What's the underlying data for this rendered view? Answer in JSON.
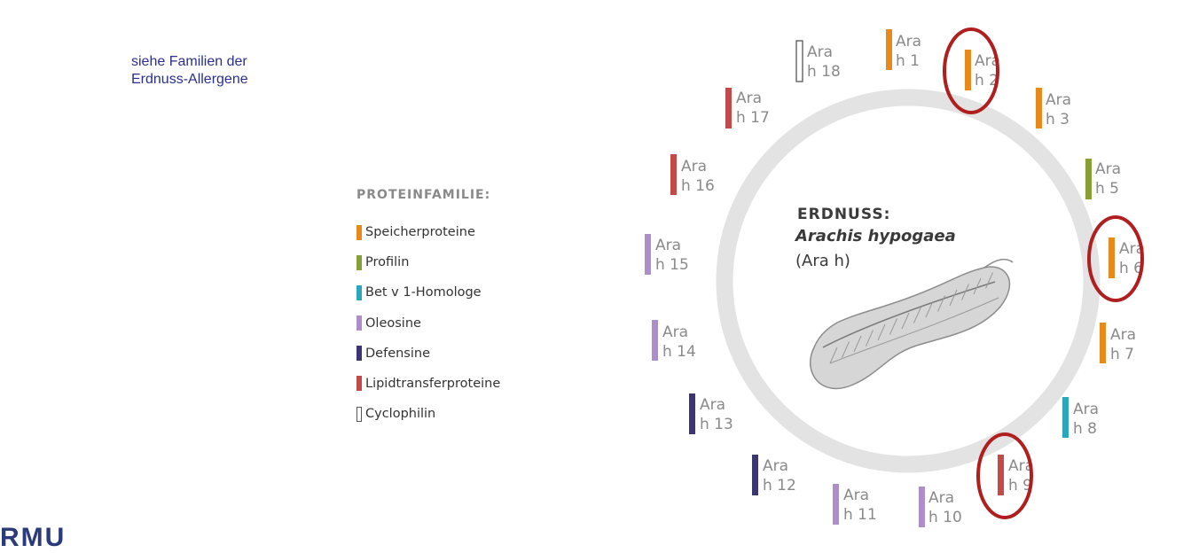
{
  "note": {
    "line1": "siehe Familien der",
    "line2": "Erdnuss-Allergene"
  },
  "legend": {
    "title": "PROTEINFAMILIE:",
    "items": [
      {
        "label": "Speicherproteine",
        "color": "#e8891c",
        "outline": false
      },
      {
        "label": "Profilin",
        "color": "#86a036",
        "outline": false
      },
      {
        "label": "Bet v 1-Homologe",
        "color": "#2aa7bd",
        "outline": false
      },
      {
        "label": "Oleosine",
        "color": "#ad8ecb",
        "outline": false
      },
      {
        "label": "Defensine",
        "color": "#3d3573",
        "outline": false
      },
      {
        "label": "Lipidtransferproteine",
        "color": "#c44a4a",
        "outline": false
      },
      {
        "label": "Cyclophilin",
        "color": "#555555",
        "outline": true
      }
    ]
  },
  "center": {
    "title": "ERDNUSS:",
    "scientific": "Arachis hypogaea",
    "abbr": "(Ara h)"
  },
  "allergens": [
    {
      "line1": "Ara",
      "line2": "h 1",
      "family": "Speicherproteine",
      "color": "#e8891c",
      "outline": false,
      "highlighted": false
    },
    {
      "line1": "Ara",
      "line2": "h 2",
      "family": "Speicherproteine",
      "color": "#e8891c",
      "outline": false,
      "highlighted": true
    },
    {
      "line1": "Ara",
      "line2": "h 3",
      "family": "Speicherproteine",
      "color": "#e8891c",
      "outline": false,
      "highlighted": false
    },
    {
      "line1": "Ara",
      "line2": "h 5",
      "family": "Profilin",
      "color": "#86a036",
      "outline": false,
      "highlighted": false
    },
    {
      "line1": "Ara",
      "line2": "h 6",
      "family": "Speicherproteine",
      "color": "#e8891c",
      "outline": false,
      "highlighted": true
    },
    {
      "line1": "Ara",
      "line2": "h 7",
      "family": "Speicherproteine",
      "color": "#e8891c",
      "outline": false,
      "highlighted": false
    },
    {
      "line1": "Ara",
      "line2": "h 8",
      "family": "Bet v 1-Homologe",
      "color": "#2aa7bd",
      "outline": false,
      "highlighted": false
    },
    {
      "line1": "Ara",
      "line2": "h 9",
      "family": "Lipidtransferproteine",
      "color": "#c44a4a",
      "outline": false,
      "highlighted": true
    },
    {
      "line1": "Ara",
      "line2": "h 10",
      "family": "Oleosine",
      "color": "#ad8ecb",
      "outline": false,
      "highlighted": false
    },
    {
      "line1": "Ara",
      "line2": "h 11",
      "family": "Oleosine",
      "color": "#ad8ecb",
      "outline": false,
      "highlighted": false
    },
    {
      "line1": "Ara",
      "line2": "h 12",
      "family": "Defensine",
      "color": "#3d3573",
      "outline": false,
      "highlighted": false
    },
    {
      "line1": "Ara",
      "line2": "h 13",
      "family": "Defensine",
      "color": "#3d3573",
      "outline": false,
      "highlighted": false
    },
    {
      "line1": "Ara",
      "line2": "h 14",
      "family": "Oleosine",
      "color": "#ad8ecb",
      "outline": false,
      "highlighted": false
    },
    {
      "line1": "Ara",
      "line2": "h 15",
      "family": "Oleosine",
      "color": "#ad8ecb",
      "outline": false,
      "highlighted": false
    },
    {
      "line1": "Ara",
      "line2": "h 16",
      "family": "Lipidtransferproteine",
      "color": "#c44a4a",
      "outline": false,
      "highlighted": false
    },
    {
      "line1": "Ara",
      "line2": "h 17",
      "family": "Lipidtransferproteine",
      "color": "#c44a4a",
      "outline": false,
      "highlighted": false
    },
    {
      "line1": "Ara",
      "line2": "h 18",
      "family": "Cyclophilin",
      "color": "#555555",
      "outline": true,
      "highlighted": false
    }
  ],
  "highlight_color": "#b01e1e",
  "logo": {
    "text": "RMU"
  }
}
